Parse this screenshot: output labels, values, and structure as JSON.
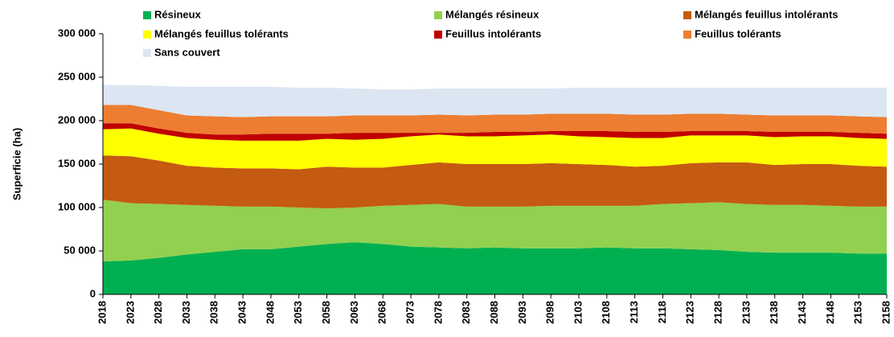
{
  "chart_data": {
    "type": "stacked_area",
    "y_label": "Superficie (ha)",
    "x": [
      2018,
      2023,
      2028,
      2033,
      2038,
      2043,
      2048,
      2053,
      2058,
      2063,
      2068,
      2073,
      2078,
      2083,
      2088,
      2093,
      2098,
      2103,
      2108,
      2113,
      2118,
      2123,
      2128,
      2133,
      2138,
      2143,
      2148,
      2153,
      2158
    ],
    "xlim": [
      2018,
      2158
    ],
    "ylim": [
      0,
      300000
    ],
    "yticks": [
      0,
      {
        "value": 50000,
        "label": "50 000"
      },
      {
        "value": 100000,
        "label": "100 000"
      },
      {
        "value": 150000,
        "label": "150 000"
      },
      {
        "value": 200000,
        "label": "200 000"
      },
      {
        "value": 250000,
        "label": "250 000"
      },
      {
        "value": 300000,
        "label": "300 000"
      }
    ],
    "legend": "top",
    "series": [
      {
        "name": "Résineux",
        "color": "#00b050",
        "values": [
          38000,
          39000,
          42000,
          46000,
          49000,
          52000,
          52000,
          55000,
          58000,
          60000,
          58000,
          55000,
          54000,
          53000,
          54000,
          53000,
          53000,
          53000,
          54000,
          53000,
          53000,
          52000,
          51000,
          49000,
          48000,
          48000,
          48000,
          47000,
          47000
        ]
      },
      {
        "name": "Mélangés résineux",
        "color": "#92d050",
        "values": [
          71000,
          66000,
          62000,
          57000,
          53000,
          49000,
          49000,
          45000,
          41000,
          40000,
          44000,
          48000,
          50000,
          48000,
          47000,
          48000,
          49000,
          49000,
          48000,
          49000,
          51000,
          53000,
          55000,
          55000,
          55000,
          55000,
          54000,
          54000,
          54000
        ]
      },
      {
        "name": "Mélangés feuillus intolérants",
        "color": "#c55a11",
        "values": [
          51000,
          54000,
          50000,
          45000,
          44000,
          44000,
          44000,
          44000,
          48000,
          46000,
          44000,
          46000,
          48000,
          49000,
          49000,
          49000,
          49000,
          48000,
          47000,
          45000,
          44000,
          46000,
          46000,
          48000,
          46000,
          47000,
          48000,
          47000,
          46000
        ]
      },
      {
        "name": "Mélangés feuillus tolérants",
        "color": "#ffff00",
        "values": [
          30000,
          32000,
          31000,
          32000,
          32000,
          32000,
          32000,
          33000,
          32000,
          32000,
          33000,
          33000,
          32000,
          32000,
          32000,
          33000,
          33000,
          32000,
          32000,
          33000,
          32000,
          32000,
          31000,
          31000,
          32000,
          32000,
          32000,
          32000,
          32000
        ]
      },
      {
        "name": "Feuillus intolérants",
        "color": "#c00000",
        "values": [
          7000,
          6000,
          6000,
          6000,
          6000,
          7000,
          8000,
          8000,
          6000,
          8000,
          7000,
          4000,
          2000,
          4000,
          5000,
          4000,
          4000,
          6000,
          7000,
          7000,
          7000,
          5000,
          5000,
          5000,
          6000,
          5000,
          5000,
          6000,
          6000
        ]
      },
      {
        "name": "Feuillus tolérants",
        "color": "#ed7d31",
        "values": [
          21000,
          21000,
          21000,
          20000,
          21000,
          20000,
          20000,
          20000,
          20000,
          20000,
          20000,
          20000,
          21000,
          20000,
          20000,
          20000,
          20000,
          20000,
          20000,
          20000,
          20000,
          20000,
          20000,
          19000,
          19000,
          19000,
          19000,
          19000,
          19000
        ]
      },
      {
        "name": "Sans couvert",
        "color": "#dce6f2",
        "values": [
          23000,
          23000,
          28000,
          33000,
          34000,
          35000,
          34000,
          33000,
          33000,
          31000,
          30000,
          30000,
          30000,
          31000,
          30000,
          30000,
          29000,
          30000,
          30000,
          31000,
          31000,
          30000,
          30000,
          31000,
          32000,
          32000,
          32000,
          33000,
          34000
        ]
      }
    ]
  }
}
